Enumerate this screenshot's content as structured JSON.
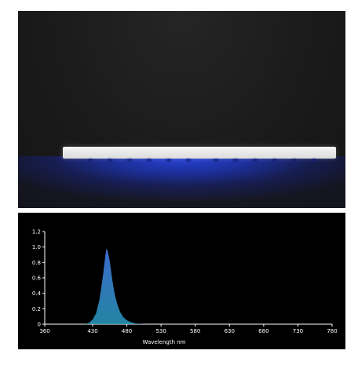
{
  "photo": {
    "subject": "LED light strip emitting blue light",
    "colors": {
      "background": "#1a1a1a",
      "strip": "#e8e8e8",
      "glow": "#2846e6"
    }
  },
  "chart_data": {
    "type": "area",
    "xlabel": "Wavelength  nm",
    "ylabel": "",
    "xlim": [
      360,
      780
    ],
    "ylim": [
      0,
      1.2
    ],
    "x_ticks": [
      360,
      430,
      480,
      530,
      580,
      630,
      680,
      730,
      780
    ],
    "y_ticks": [
      0,
      0.2,
      0.4,
      0.6,
      0.8,
      1.0,
      1.2
    ],
    "y_tick_labels": [
      "0",
      "0.2",
      "0.4",
      "0.6",
      "0.8",
      "1.0",
      "1.2"
    ],
    "grid": false,
    "colors": {
      "background": "#000000",
      "fill_top": "#3f6fd8",
      "fill_bottom": "#2a9bc0",
      "axis": "#ffffff"
    },
    "series": [
      {
        "x": [
          420,
          425,
          430,
          435,
          440,
          445,
          448,
          450,
          452,
          455,
          458,
          460,
          463,
          466,
          470,
          475,
          480,
          485,
          490,
          495,
          500,
          505
        ],
        "values": [
          0.0,
          0.02,
          0.06,
          0.14,
          0.32,
          0.62,
          0.85,
          0.98,
          0.95,
          0.82,
          0.62,
          0.5,
          0.36,
          0.26,
          0.16,
          0.09,
          0.05,
          0.03,
          0.015,
          0.008,
          0.004,
          0.0
        ]
      }
    ]
  }
}
